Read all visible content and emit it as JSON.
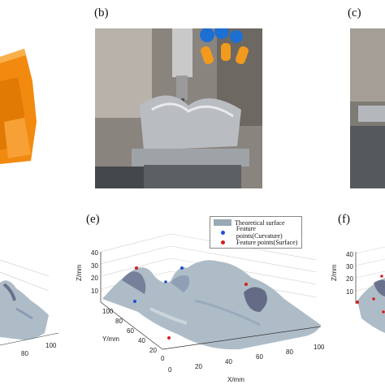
{
  "panels": {
    "b_label": "(b)",
    "c_label": "(c)",
    "e_label": "(e)",
    "f_label": "(f)"
  },
  "colors": {
    "cad_orange": "#f28a10",
    "surface": "#aebcc7",
    "curvature_point": "#1f4fd6",
    "surface_point": "#d42020"
  },
  "plot_e": {
    "z_label": "Z/mm",
    "y_label": "Y/mm",
    "x_label": "X/mm",
    "z_ticks": [
      "40",
      "30",
      "20",
      "10"
    ],
    "y_ticks": [
      "100",
      "80",
      "60",
      "40",
      "20",
      "0"
    ],
    "x_ticks": [
      "0",
      "20",
      "40",
      "60",
      "80",
      "100"
    ],
    "legend": {
      "surface": "Theoretical surface",
      "curvature": "Feature points(Curvature)",
      "surface_points": "Feature points(Surface)"
    }
  },
  "plot_d": {
    "x_ticks": [
      "80",
      "100"
    ]
  },
  "plot_f": {
    "z_label": "Z/mm",
    "z_ticks": [
      "40",
      "30",
      "20",
      "10"
    ]
  }
}
